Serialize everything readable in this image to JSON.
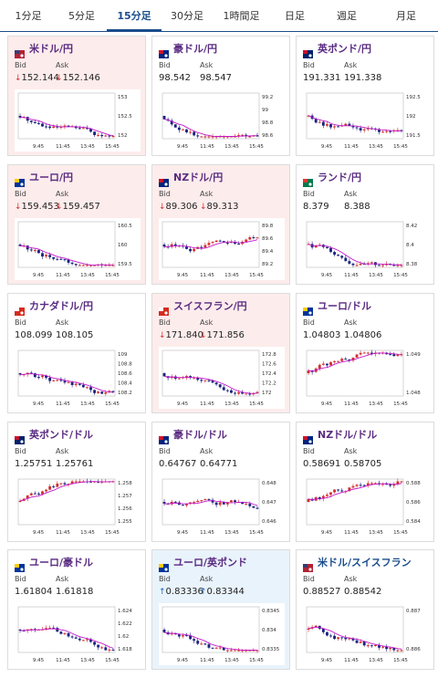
{
  "tabs": [
    {
      "label": "1分足",
      "active": false
    },
    {
      "label": "5分足",
      "active": false
    },
    {
      "label": "15分足",
      "active": true
    },
    {
      "label": "30分足",
      "active": false
    },
    {
      "label": "1時間足",
      "active": false
    },
    {
      "label": "日足",
      "active": false
    },
    {
      "label": "週足",
      "active": false
    },
    {
      "label": "月足",
      "active": false
    }
  ],
  "bid_label": "Bid",
  "ask_label": "Ask",
  "x_ticks": [
    "9:45",
    "11:45",
    "13:45",
    "15:45"
  ],
  "colors": {
    "down_arrow": "#d32f2f",
    "up_arrow": "#1565c0",
    "title": "#5a2b81",
    "tab_active": "#1a4d8c",
    "candle_up": "#d32f2f",
    "candle_down": "#1a237e",
    "ma_line": "#c218c9"
  },
  "cards": [
    {
      "title": "米ドル/円",
      "flag": "us-jp-flag",
      "bg": "down",
      "bid": "152.144",
      "ask": "152.146",
      "dir": "down",
      "yticks": [
        "153",
        "152.5",
        "152"
      ],
      "trend": "down"
    },
    {
      "title": "豪ドル/円",
      "flag": "au-jp-flag",
      "bg": "neutral",
      "bid": "98.542",
      "ask": "98.547",
      "dir": "none",
      "yticks": [
        "99.2",
        "99",
        "98.8",
        "98.6"
      ],
      "trend": "down"
    },
    {
      "title": "英ポンド/円",
      "flag": "gb-jp-flag",
      "bg": "neutral",
      "bid": "191.331",
      "ask": "191.338",
      "dir": "none",
      "yticks": [
        "192.5",
        "192",
        "191.5"
      ],
      "trend": "down"
    },
    {
      "title": "ユーロ/円",
      "flag": "eu-jp-flag",
      "bg": "down",
      "bid": "159.453",
      "ask": "159.457",
      "dir": "down",
      "yticks": [
        "160.5",
        "160",
        "159.5"
      ],
      "trend": "down"
    },
    {
      "title": "NZドル/円",
      "flag": "nz-jp-flag",
      "bg": "down",
      "bid": "89.306",
      "ask": "89.313",
      "dir": "down",
      "yticks": [
        "89.8",
        "89.6",
        "89.4",
        "89.2"
      ],
      "trend": "flat"
    },
    {
      "title": "ランド/円",
      "flag": "za-jp-flag",
      "bg": "neutral",
      "bid": "8.379",
      "ask": "8.388",
      "dir": "none",
      "yticks": [
        "8.42",
        "8.4",
        "8.38"
      ],
      "trend": "down"
    },
    {
      "title": "カナダドル/円",
      "flag": "ca-jp-flag",
      "bg": "neutral",
      "bid": "108.099",
      "ask": "108.105",
      "dir": "none",
      "yticks": [
        "109",
        "108.8",
        "108.6",
        "108.4",
        "108.2"
      ],
      "trend": "down"
    },
    {
      "title": "スイスフラン/円",
      "flag": "ch-jp-flag",
      "bg": "down",
      "bid": "171.840",
      "ask": "171.856",
      "dir": "down",
      "yticks": [
        "172.8",
        "172.6",
        "172.4",
        "172.2",
        "172"
      ],
      "trend": "down"
    },
    {
      "title": "ユーロ/ドル",
      "flag": "eu-us-flag",
      "bg": "neutral",
      "bid": "1.04803",
      "ask": "1.04806",
      "dir": "none",
      "yticks": [
        "1.049",
        "1.048"
      ],
      "trend": "up"
    },
    {
      "title": "英ポンド/ドル",
      "flag": "gb-us-flag",
      "bg": "neutral",
      "bid": "1.25751",
      "ask": "1.25761",
      "dir": "none",
      "yticks": [
        "1.258",
        "1.257",
        "1.256",
        "1.255"
      ],
      "trend": "up"
    },
    {
      "title": "豪ドル/ドル",
      "flag": "au-us-flag",
      "bg": "neutral",
      "bid": "0.64767",
      "ask": "0.64771",
      "dir": "none",
      "yticks": [
        "0.648",
        "0.647",
        "0.646"
      ],
      "trend": "flat"
    },
    {
      "title": "NZドル/ドル",
      "flag": "nz-us-flag",
      "bg": "neutral",
      "bid": "0.58691",
      "ask": "0.58705",
      "dir": "none",
      "yticks": [
        "0.588",
        "0.586",
        "0.584"
      ],
      "trend": "up"
    },
    {
      "title": "ユーロ/豪ドル",
      "flag": "eu-au-flag",
      "bg": "neutral",
      "bid": "1.61804",
      "ask": "1.61818",
      "dir": "none",
      "yticks": [
        "1.624",
        "1.622",
        "1.62",
        "1.618"
      ],
      "trend": "down"
    },
    {
      "title": "ユーロ/英ポンド",
      "flag": "eu-gb-flag",
      "bg": "up",
      "bid": "0.83336",
      "ask": "0.83344",
      "dir": "up",
      "yticks": [
        "0.8345",
        "0.834",
        "0.8335"
      ],
      "trend": "down"
    },
    {
      "title": "米ドル/スイスフラン",
      "flag": "us-ch-flag",
      "bg": "neutral",
      "bid": "0.88527",
      "ask": "0.88542",
      "dir": "none",
      "yticks": [
        "0.887",
        "0.886"
      ],
      "trend": "down",
      "title_color": "blue"
    }
  ]
}
